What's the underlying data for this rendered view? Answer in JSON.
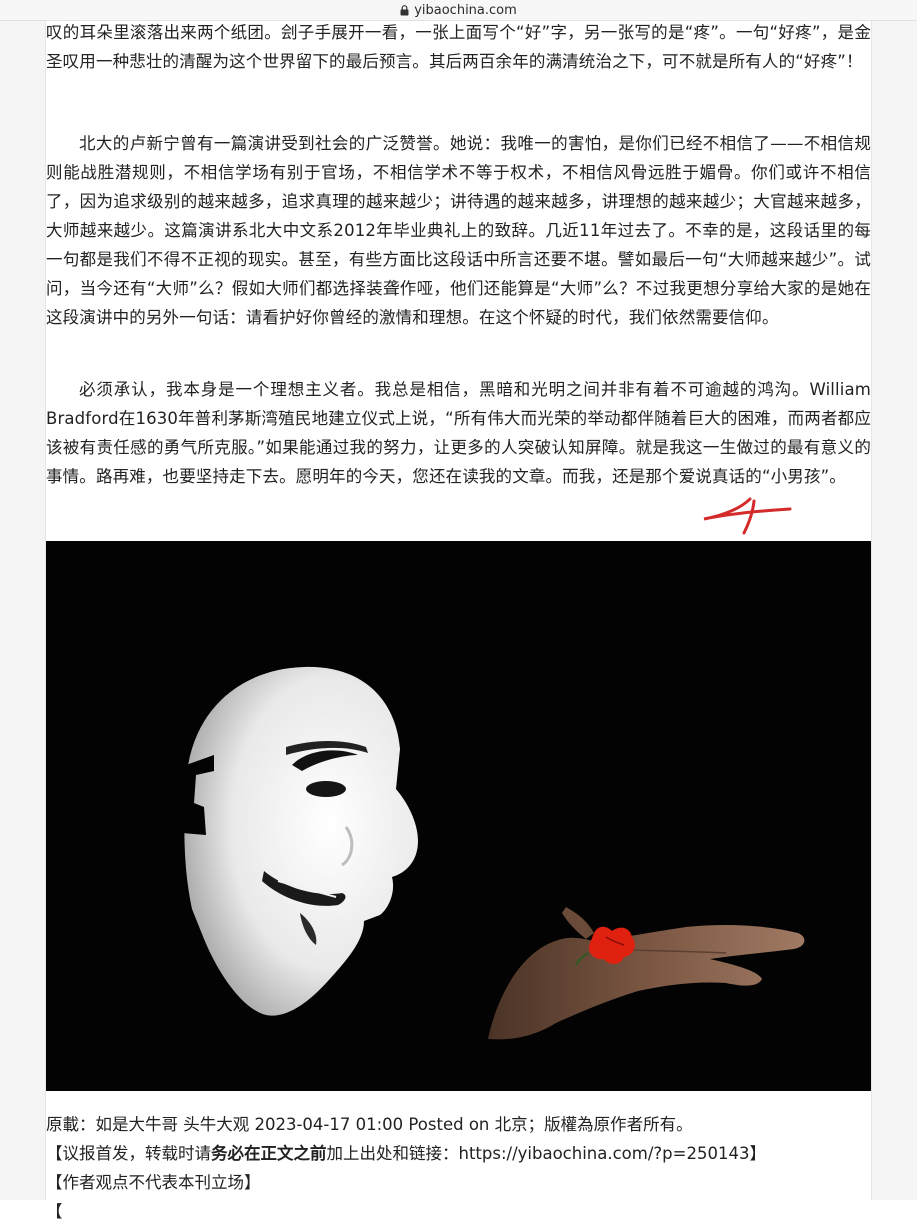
{
  "browser": {
    "url": "yibaochina.com"
  },
  "article": {
    "paragraph_1": "叹的耳朵里滚落出来两个纸团。刽子手展开一看，一张上面写个“好”字，另一张写的是“疼”。一句“好疼”，是金圣叹用一种悲壮的清醒为这个世界留下的最后预言。其后两百余年的满清统治之下，可不就是所有人的“好疼”！",
    "paragraph_2": "北大的卢新宁曾有一篇演讲受到社会的广泛赞誉。她说：我唯一的害怕，是你们已经不相信了——不相信规则能战胜潜规则，不相信学场有别于官场，不相信学术不等于权术，不相信风骨远胜于媚骨。你们或许不相信了，因为追求级别的越来越多，追求真理的越来越少；讲待遇的越来越多，讲理想的越来越少；大官越来越多，大师越来越少。这篇演讲系北大中文系2012年毕业典礼上的致辞。几近11年过去了。不幸的是，这段话里的每一句都是我们不得不正视的现实。甚至，有些方面比这段话中所言还要不堪。譬如最后一句“大师越来越少”。试问，当今还有“大师”么？假如大师们都选择装聋作哑，他们还能算是“大师”么？不过我更想分享给大家的是她在这段演讲中的另外一句话：请看护好你曾经的激情和理想。在这个怀疑的时代，我们依然需要信仰。",
    "paragraph_3": "必须承认，我本身是一个理想主义者。我总是相信，黑暗和光明之间并非有着不可逾越的鸿沟。William Bradford在1630年普利茅斯湾殖民地建立仪式上说，“所有伟大而光荣的举动都伴随着巨大的困难，而两者都应该被有责任感的勇气所克服。”如果能通过我的努力，让更多的人突破认知屏障。就是我这一生做过的最有意义的事情。路再难，也要坚持走下去。愿明年的今天，您还在读我的文章。而我，还是那个爱说真话的“小男孩”。"
  },
  "signature_mark": {
    "icon": "handwritten-red-mark-icon",
    "color": "#d42a2a"
  },
  "photo": {
    "subject": "guy-fawkes-mask-and-hand-with-red-flower",
    "background_color": "#030303",
    "flower_color": "#e0210f"
  },
  "footer": {
    "source_line": "原載：如是大牛哥 头牛大观 2023-04-17 01:00 Posted on 北京；版權為原作者所有。",
    "notice_prefix": "【议报首发，转载时请",
    "notice_bold": "务必在正文之前",
    "notice_middle": "加上出处和链接：",
    "notice_link": "https://yibaochina.com/?p=250143",
    "notice_suffix": "】",
    "disclaimer": "【作者观点不代表本刊立场】",
    "partial_line": "【"
  }
}
